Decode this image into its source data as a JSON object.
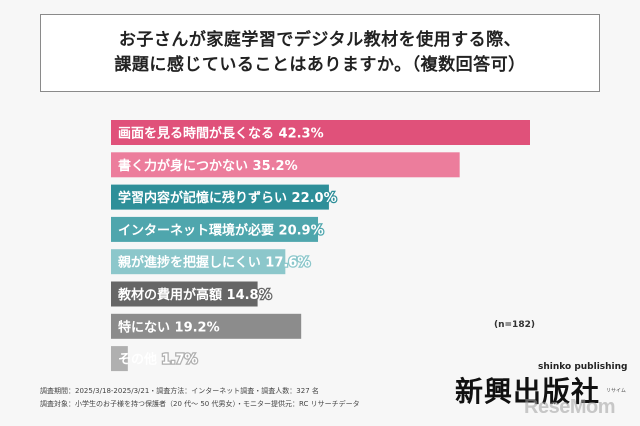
{
  "header": {
    "title_line1": "お子さんが家庭学習でデジタル教材を使用する際、",
    "title_line2": "課題に感じていることはありますか。（複数回答可）"
  },
  "chart_data": {
    "type": "bar",
    "orientation": "horizontal",
    "categories": [
      "画面を見る時間が長くなる",
      "書く力が身につかない",
      "学習内容が記憶に残りずらい",
      "インターネット環境が必要",
      "親が進捗を把握しにくい",
      "教材の費用が高額",
      "特にない",
      "その他"
    ],
    "values": [
      42.3,
      35.2,
      22.0,
      20.9,
      17.6,
      14.8,
      19.2,
      1.7
    ],
    "value_labels": [
      "42.3%",
      "35.2%",
      "22.0%",
      "20.9%",
      "17.6%",
      "14.8%",
      "19.2%",
      "1.7%"
    ],
    "colors": [
      "#e0517a",
      "#ec7d9c",
      "#2e8f99",
      "#4fa6ad",
      "#8cc7cb",
      "#666666",
      "#8c8c8c",
      "#b0b0b0"
    ],
    "xlim": [
      0,
      45
    ],
    "grid": false,
    "legend": "none"
  },
  "note": {
    "n": "(n=182)"
  },
  "footnotes": {
    "period": "調査期間：2025/3/18-2025/3/21・調査方法：インターネット調査・調査人数：327 名",
    "target": "調査対象：小学生のお子様を持つ保護者（20 代～ 50 代男女）・モニター提供元：RC リサーチデータ"
  },
  "brand": {
    "sub": "shinko publishing",
    "main": "新興出版社",
    "kana": "リサイム",
    "watermark": "ReseMom"
  }
}
